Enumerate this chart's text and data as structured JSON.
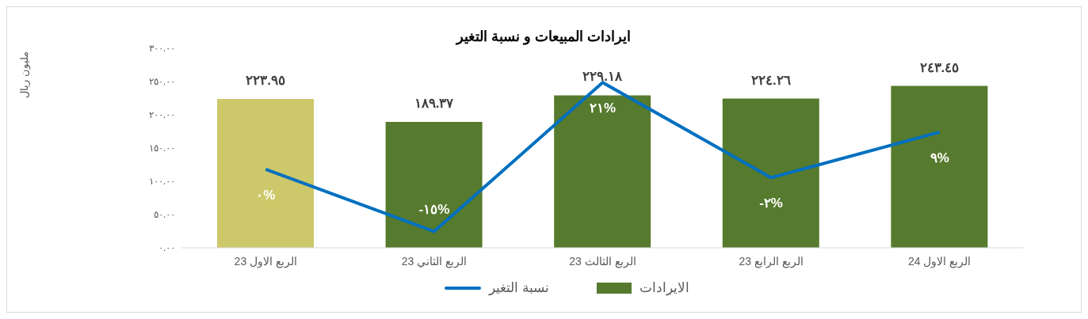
{
  "chart_data": {
    "type": "bar",
    "title": "ايرادات المبيعات و نسبة التغير",
    "annotations": [
      "مليون ريال"
    ],
    "categories": [
      "الربع الاول 23",
      "الربع الثاني 23",
      "الربع الثالث 23",
      "الربع الرابع 23",
      "الربع الاول 24"
    ],
    "ylim": [
      0,
      300
    ],
    "yticks": [
      {
        "value": 0,
        "label": "٠.٠٠"
      },
      {
        "value": 50,
        "label": "٥٠.٠٠"
      },
      {
        "value": 100,
        "label": "١٠٠.٠٠"
      },
      {
        "value": 150,
        "label": "١٥٠.٠٠"
      },
      {
        "value": 200,
        "label": "٢٠٠.٠٠"
      },
      {
        "value": 250,
        "label": "٢٥٠.٠٠"
      },
      {
        "value": 300,
        "label": "٣٠٠.٠٠"
      }
    ],
    "grid": false,
    "legend": "bottom",
    "marker": "none",
    "series": [
      {
        "name": "الايرادات",
        "color": "#567a2e",
        "colors": [
          "#cdc86a",
          "#567a2e",
          "#567a2e",
          "#567a2e",
          "#567a2e"
        ],
        "values": [
          223.95,
          189.37,
          229.18,
          224.26,
          243.45
        ],
        "value_labels": [
          "٢٢٣.٩٥",
          "١٨٩.٣٧",
          "٢٢٩.١٨",
          "٢٢٤.٢٦",
          "٢٤٣.٤٥"
        ]
      },
      {
        "name": "نسبة التغير",
        "type": "line",
        "axis": "y2",
        "color": "#0070c0",
        "values": [
          0,
          -15,
          21,
          -2,
          9
        ],
        "value_labels": [
          "٠%",
          "-١٥%",
          "٢١%",
          "-٢%",
          "٩%"
        ]
      }
    ]
  }
}
